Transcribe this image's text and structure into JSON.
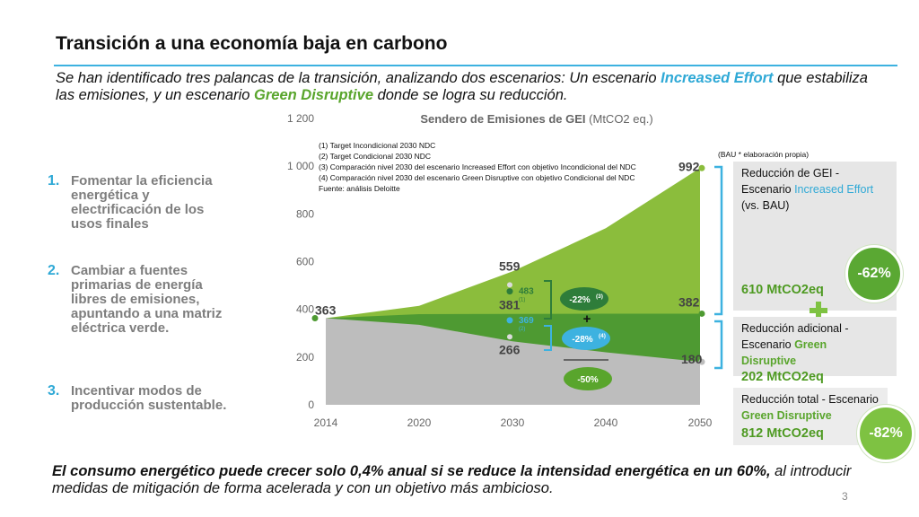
{
  "title": "Transición a una economía baja en carbono",
  "subtitle": {
    "p1": "Se han identificado tres palancas de la transición, analizando dos escenarios: Un escenario ",
    "h1": "Increased Effort",
    "p2": " que estabiliza las emisiones, y un escenario ",
    "h2": "Green Disruptive",
    "p3": " donde se logra su reducción."
  },
  "levers": [
    {
      "num": "1.",
      "text": "Fomentar la eficiencia energética y electrificación de los usos finales"
    },
    {
      "num": "2.",
      "text": "Cambiar a fuentes primarias de energía libres de emisiones, apuntando a una matriz eléctrica verde."
    },
    {
      "num": "3.",
      "text": "Incentivar modos de producción sustentable."
    }
  ],
  "chart_data": {
    "type": "area",
    "title": "Sendero de Emisiones de GEI",
    "title_unit": "(MtCO2 eq.)",
    "x": [
      2014,
      2020,
      2030,
      2040,
      2050
    ],
    "xticks": [
      "2014",
      "2020",
      "2030",
      "2040",
      "2050"
    ],
    "yticks": [
      "0",
      "200",
      "400",
      "600",
      "800",
      "1 000",
      "1 200"
    ],
    "ylim": [
      0,
      1200
    ],
    "series": [
      {
        "name": "BAU",
        "values": [
          363,
          415,
          559,
          740,
          992
        ],
        "color": "#8bbd3c"
      },
      {
        "name": "Increased Effort",
        "values": [
          363,
          380,
          381,
          382,
          382
        ],
        "color": "#4e9a32"
      },
      {
        "name": "Green Disruptive",
        "values": [
          363,
          335,
          266,
          220,
          180
        ],
        "color": "#bdbdbd"
      }
    ],
    "data_labels": {
      "start": "363",
      "bau_2030": "559",
      "ie_2030": "381",
      "gd_2030": "266",
      "bau_2050": "992",
      "ie_2050": "382",
      "gd_2050": "180"
    },
    "ndc_points": [
      {
        "label": "483",
        "note": "(1)",
        "value": 483,
        "color": "#2e7d3a"
      },
      {
        "label": "369",
        "note": "(2)",
        "value": 369,
        "color": "#3db2e0"
      }
    ],
    "notes": [
      "(1)  Target Incondicional 2030 NDC",
      "(2)  Target Condicional 2030 NDC",
      "(3)  Comparación nivel 2030 del escenario Increased Effort con objetivo Incondicional del NDC",
      "(4)  Comparación nivel 2030 del escenario Green Disruptive con objetivo Condicional del NDC",
      "Fuente: análisis Deloitte"
    ],
    "bau_note": "(BAU * elaboración propia)",
    "comparisons": [
      {
        "label": "-22%",
        "sup": "(3)",
        "color": "#2e7d3a"
      },
      {
        "label": "-28%",
        "sup": "(4)",
        "color": "#3db2e0"
      }
    ],
    "plus": "+",
    "total_bubble": "-50%"
  },
  "boxes": {
    "ie_line1": "Reducción de GEI -",
    "ie_line2a": "Escenario ",
    "ie_line2b": "Increased Effort",
    "ie_line3": "(vs. BAU)",
    "ie_value": "610 MtCO2eq",
    "ie_pct": "-62%",
    "gd_line1": "Reducción adicional -",
    "gd_line2a": "Escenario ",
    "gd_line2b": "Green",
    "gd_line3": "Disruptive",
    "gd_value": "202 MtCO2eq",
    "tot_line1": "Reducción total - Escenario",
    "tot_line2": "Green Disruptive",
    "tot_value": "812 MtCO2eq",
    "tot_pct": "-82%"
  },
  "bottom": {
    "bold": "El consumo energético puede crecer solo 0,4% anual si se reduce la intensidad energética en un 60%,",
    "rest": " al introducir medidas de mitigación de forma acelerada y con un objetivo más ambicioso."
  },
  "page_number": "3"
}
